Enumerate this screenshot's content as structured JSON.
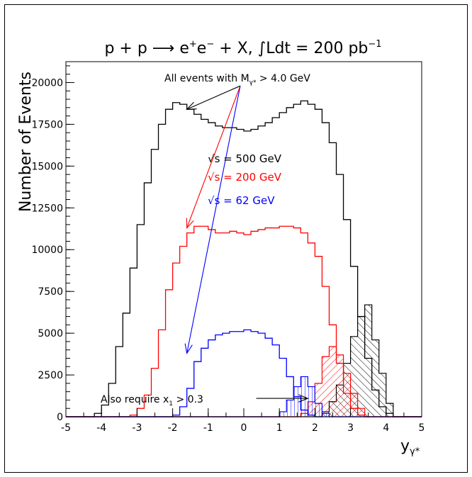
{
  "chart_data": {
    "type": "histogram",
    "title": {
      "process": "p + p ",
      "arrow": "⟶",
      "final_e": " e",
      "plus_sup": "+",
      "e2": "e",
      "minus_sup": "−",
      "rest": " + X, ",
      "integral": "∫",
      "lumi": "Ldt = 200 pb",
      "lumi_sup": "−1"
    },
    "ylabel": "Number of Events",
    "xlabel": {
      "base": "y",
      "sub": "γ*"
    },
    "xlim": [
      -5,
      5
    ],
    "ylim": [
      0,
      21250
    ],
    "xticks": [
      -5,
      -4,
      -3,
      -2,
      -1,
      0,
      1,
      2,
      3,
      4,
      5
    ],
    "yticks": [
      0,
      2500,
      5000,
      7500,
      10000,
      12500,
      15000,
      17500,
      20000
    ],
    "bin_edges_x": [
      -5.0,
      -4.8,
      -4.6,
      -4.4,
      -4.2,
      -4.0,
      -3.8,
      -3.6,
      -3.4,
      -3.2,
      -3.0,
      -2.8,
      -2.6,
      -2.4,
      -2.2,
      -2.0,
      -1.8,
      -1.6,
      -1.4,
      -1.2,
      -1.0,
      -0.8,
      -0.6,
      -0.4,
      -0.2,
      0.0,
      0.2,
      0.4,
      0.6,
      0.8,
      1.0,
      1.2,
      1.4,
      1.6,
      1.8,
      2.0,
      2.2,
      2.4,
      2.6,
      2.8,
      3.0,
      3.2,
      3.4,
      3.6,
      3.8,
      4.0,
      4.2,
      4.4,
      4.6,
      4.8,
      5.0
    ],
    "series": [
      {
        "name": "√s = 500 GeV",
        "color": "#000000",
        "values": [
          0,
          0,
          0,
          0,
          200,
          700,
          2000,
          4200,
          6200,
          8900,
          11500,
          14000,
          16000,
          17500,
          18400,
          18800,
          18700,
          18400,
          18100,
          17800,
          17600,
          17400,
          17300,
          17300,
          17200,
          17100,
          17200,
          17400,
          17600,
          17900,
          18200,
          18500,
          18700,
          18900,
          18700,
          18400,
          17600,
          16400,
          14500,
          11800,
          9000,
          6000,
          3500,
          1600,
          600,
          200,
          0,
          0,
          0,
          0
        ]
      },
      {
        "name": "√s = 200 GeV",
        "color": "#ff0000",
        "values": [
          0,
          0,
          0,
          0,
          0,
          0,
          0,
          0,
          0,
          100,
          500,
          1300,
          2900,
          5200,
          7600,
          9200,
          10200,
          11000,
          11400,
          11400,
          11200,
          11000,
          11000,
          11100,
          11000,
          10900,
          11100,
          11200,
          11300,
          11300,
          11400,
          11400,
          11300,
          11000,
          10400,
          9600,
          7800,
          5500,
          3200,
          1400,
          500,
          100,
          0,
          0,
          0,
          0,
          0,
          0,
          0,
          0
        ]
      },
      {
        "name": "√s = 62 GeV",
        "color": "#0000ff",
        "values": [
          0,
          0,
          0,
          0,
          0,
          0,
          0,
          0,
          0,
          0,
          0,
          0,
          0,
          0,
          0,
          100,
          600,
          1700,
          3300,
          4100,
          4600,
          4900,
          5000,
          5100,
          5100,
          5200,
          5100,
          5000,
          4700,
          4300,
          3500,
          2400,
          1200,
          400,
          100,
          0,
          0,
          0,
          0,
          0,
          0,
          0,
          0,
          0,
          0,
          0,
          0,
          0,
          0,
          0
        ]
      }
    ],
    "hatched_series": [
      {
        "name": "√s = 500 GeV, x₁ > 0.3",
        "color": "#000000",
        "values": [
          0,
          0,
          0,
          0,
          0,
          0,
          0,
          0,
          0,
          0,
          0,
          0,
          0,
          0,
          0,
          0,
          0,
          0,
          0,
          0,
          0,
          0,
          0,
          0,
          0,
          0,
          0,
          0,
          0,
          0,
          0,
          0,
          0,
          0,
          0,
          0,
          300,
          900,
          1900,
          3200,
          4800,
          6000,
          6700,
          4600,
          2600,
          800,
          0,
          0,
          0,
          0
        ]
      },
      {
        "name": "√s = 200 GeV, x₁ > 0.3",
        "color": "#ff0000",
        "values": [
          0,
          0,
          0,
          0,
          0,
          0,
          0,
          0,
          0,
          0,
          0,
          0,
          0,
          0,
          0,
          0,
          0,
          0,
          0,
          0,
          0,
          0,
          0,
          0,
          0,
          0,
          0,
          0,
          0,
          0,
          0,
          0,
          0,
          200,
          900,
          2000,
          3600,
          4200,
          3700,
          2600,
          1400,
          500,
          0,
          0,
          0,
          0,
          0,
          0,
          0,
          0
        ]
      },
      {
        "name": "√s = 62 GeV, x₁ > 0.3",
        "color": "#0000ff",
        "values": [
          0,
          0,
          0,
          0,
          0,
          0,
          0,
          0,
          0,
          0,
          0,
          0,
          0,
          0,
          0,
          0,
          0,
          0,
          0,
          0,
          0,
          0,
          0,
          0,
          0,
          0,
          0,
          0,
          0,
          0,
          300,
          1000,
          1800,
          2400,
          1800,
          800,
          200,
          0,
          0,
          0,
          0,
          0,
          0,
          0,
          0,
          0,
          0,
          0,
          0,
          0
        ]
      }
    ],
    "legend_entries": [
      {
        "sqrt": "√",
        "label": "s = 500 GeV",
        "color": "#000000"
      },
      {
        "sqrt": "√",
        "label": "s = 200 GeV",
        "color": "#ff0000"
      },
      {
        "sqrt": "√",
        "label": "s = 62 GeV",
        "color": "#0000ff"
      }
    ],
    "annotations": {
      "top": {
        "text": "All events with M",
        "sub": "γ*",
        "rest": " > 4.0 GeV"
      },
      "bottom": {
        "text": "Also require x",
        "sub": "1",
        "rest": " > 0.3"
      }
    },
    "arrow_marks": [
      {
        "color": "#000000",
        "from": [
          -0.1,
          19800
        ],
        "to": [
          -1.6,
          18400
        ]
      },
      {
        "color": "#ff0000",
        "from": [
          -0.1,
          19800
        ],
        "to": [
          -1.6,
          11300
        ]
      },
      {
        "color": "#0000ff",
        "from": [
          -0.1,
          19800
        ],
        "to": [
          -1.6,
          3800
        ]
      },
      {
        "color": "#000000",
        "from": [
          0.35,
          1100
        ],
        "to": [
          1.8,
          1100
        ]
      }
    ]
  }
}
